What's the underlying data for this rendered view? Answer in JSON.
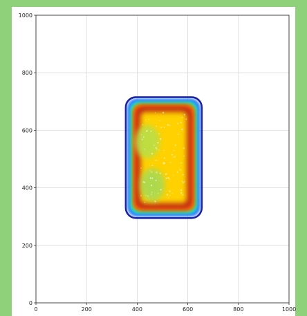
{
  "chart_data": {
    "type": "heatmap",
    "title": "",
    "xlabel": "",
    "ylabel": "",
    "xlim": [
      0,
      1000
    ],
    "ylim": [
      0,
      1000
    ],
    "xticks": [
      0,
      200,
      400,
      600,
      800,
      1000
    ],
    "yticks": [
      0,
      200,
      400,
      600,
      800,
      1000
    ],
    "xtick_labels": [
      "0",
      "200",
      "400",
      "600",
      "800",
      "1000"
    ],
    "ytick_labels": [
      "0",
      "200",
      "400",
      "600",
      "800",
      "1000"
    ],
    "grid": true,
    "region": {
      "shape": "rounded-rectangle",
      "x_range": [
        355,
        655
      ],
      "y_range": [
        295,
        715
      ],
      "corner_radius": 40
    },
    "density_rings_outer_to_inner": [
      {
        "level": "outline",
        "color": "#1a1a9a"
      },
      {
        "level": "low",
        "color": "#2f6bff"
      },
      {
        "level": "low-mid",
        "color": "#16d6e6"
      },
      {
        "level": "mid",
        "color": "#3cdc6e"
      },
      {
        "level": "mid-high",
        "color": "#ff9900"
      },
      {
        "level": "high",
        "color": "#e8420c"
      },
      {
        "level": "peak",
        "color": "#b31b12"
      },
      {
        "level": "core",
        "color": "#ffd100"
      }
    ],
    "inner_spots": [
      {
        "x": 440,
        "y": 560,
        "color": "#b9df4a"
      },
      {
        "x": 460,
        "y": 410,
        "color": "#a7da55"
      }
    ]
  },
  "colors": {
    "frame": "#8fd17a",
    "panel": "#ffffff",
    "grid": "#d9d9d9",
    "axis": "#333333"
  }
}
